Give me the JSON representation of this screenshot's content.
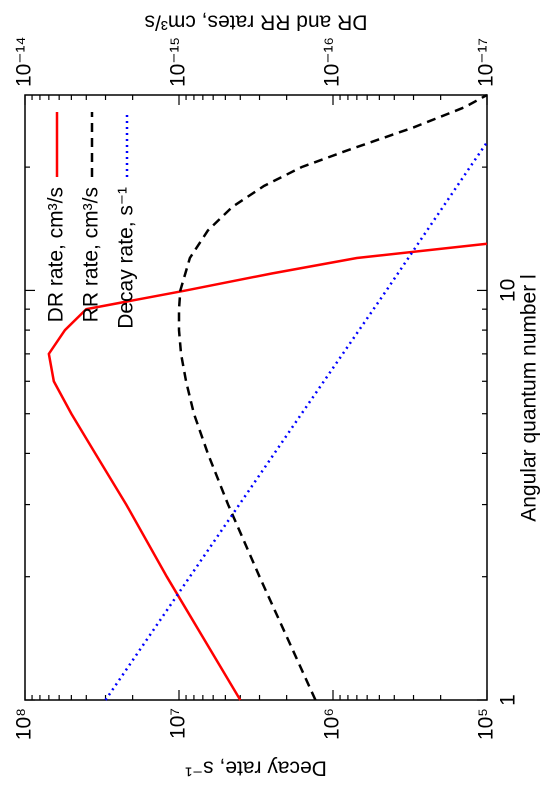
{
  "chart_data": {
    "type": "line",
    "xlabel": "Angular quantum number l",
    "ylabel": "Decay rate, s⁻¹",
    "y2label": "DR and RR rates, cm³/s",
    "xlog": true,
    "ylog": true,
    "y2log": true,
    "xlim": [
      1,
      30
    ],
    "xticks": [
      1,
      10
    ],
    "ylim": [
      100000,
      100000000
    ],
    "yticks": [
      {
        "value": 100000,
        "label": "10⁵"
      },
      {
        "value": 1000000,
        "label": "10⁶"
      },
      {
        "value": 10000000,
        "label": "10⁷"
      },
      {
        "value": 100000000,
        "label": "10⁸"
      }
    ],
    "y2lim": [
      1e-17,
      1e-14
    ],
    "y2ticks": [
      {
        "value": 1e-17,
        "label": "10⁻¹⁷"
      },
      {
        "value": 1e-16,
        "label": "10⁻¹⁶"
      },
      {
        "value": 1e-15,
        "label": "10⁻¹⁵"
      },
      {
        "value": 1e-14,
        "label": "10⁻¹⁴"
      }
    ],
    "legend": "top-right",
    "series": [
      {
        "name": "DR rate, cm³/s",
        "color": "#ff0000",
        "style": "solid",
        "axis": "y2",
        "x": [
          1,
          2,
          3,
          4,
          5,
          6,
          7,
          8,
          9,
          10,
          11,
          12,
          13
        ],
        "values": [
          4e-16,
          1.2e-15,
          2.2e-15,
          3.5e-15,
          5e-15,
          6.5e-15,
          7e-15,
          5.5e-15,
          4e-15,
          9e-16,
          2.5e-16,
          7e-17,
          1e-17
        ]
      },
      {
        "name": "RR rate, cm³/s",
        "color": "#000000",
        "style": "dashed",
        "axis": "y2",
        "x": [
          1,
          2,
          3,
          4,
          5,
          6,
          7,
          8,
          9,
          10,
          12,
          14,
          16,
          18,
          20,
          22,
          25,
          28,
          30
        ],
        "values": [
          1.3e-16,
          3e-16,
          4.8e-16,
          6.5e-16,
          8e-16,
          9e-16,
          9.7e-16,
          1e-15,
          1e-15,
          9.8e-16,
          8.5e-16,
          6.5e-16,
          4.5e-16,
          2.8e-16,
          1.6e-16,
          8e-17,
          3e-17,
          1.4e-17,
          1e-17
        ]
      },
      {
        "name": "Decay rate, s⁻¹",
        "color": "#0000ff",
        "style": "dotted",
        "x": [
          1,
          2,
          5,
          10,
          20,
          23
        ],
        "values": [
          30000000,
          8500000,
          1600000,
          450000,
          129000,
          100000
        ]
      }
    ]
  }
}
